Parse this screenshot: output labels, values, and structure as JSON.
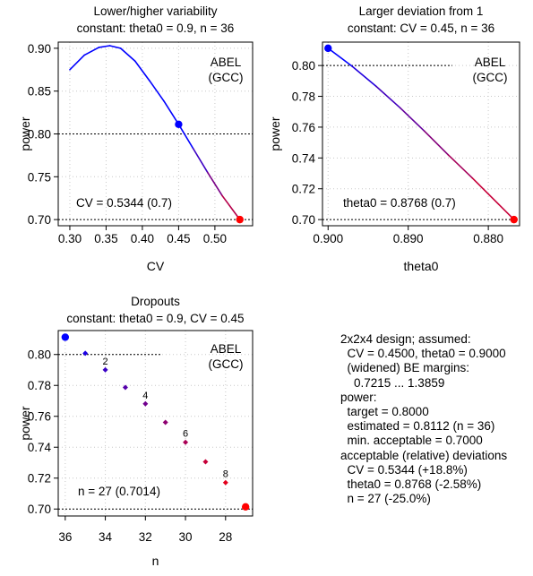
{
  "panels": [
    {
      "id": "cv",
      "title_lines": [
        "Lower/higher variability",
        "constant: theta0 = 0.9, n = 36"
      ],
      "xlabel": "CV",
      "ylabel": "power",
      "x_reversed": false,
      "xlim": [
        0.284,
        0.552
      ],
      "ylim": [
        0.6928,
        0.9072
      ],
      "x_ticks": [
        "0.30",
        "0.35",
        "0.40",
        "0.45",
        "0.50"
      ],
      "y_ticks": [
        "0.70",
        "0.75",
        "0.80",
        "0.85",
        "0.90"
      ],
      "legend_lines": [
        "ABEL",
        "(GCC)"
      ],
      "annotation": "CV = 0.5344 (0.7)",
      "target_power": 0.8,
      "min_power": 0.7,
      "curve": {
        "x": [
          0.3,
          0.32,
          0.34,
          0.355,
          0.37,
          0.39,
          0.41,
          0.43,
          0.45,
          0.47,
          0.49,
          0.51,
          0.5344
        ],
        "y": [
          0.875,
          0.892,
          0.901,
          0.903,
          0.9,
          0.885,
          0.862,
          0.838,
          0.8112,
          0.783,
          0.755,
          0.728,
          0.7
        ]
      },
      "start_point": {
        "x": 0.45,
        "y": 0.8112
      },
      "end_point": {
        "x": 0.5344,
        "y": 0.7
      }
    },
    {
      "id": "theta0",
      "title_lines": [
        "Larger deviation from 1",
        "constant: CV = 0.45, n = 36"
      ],
      "xlabel": "theta0",
      "ylabel": "power",
      "x_reversed": true,
      "xlim": [
        0.9007,
        0.8761
      ],
      "ylim": [
        0.696,
        0.8152
      ],
      "x_ticks": [
        "0.900",
        "0.890",
        "0.880"
      ],
      "y_ticks": [
        "0.70",
        "0.72",
        "0.74",
        "0.76",
        "0.78",
        "0.80"
      ],
      "legend_lines": [
        "ABEL",
        "(GCC)"
      ],
      "annotation": "theta0 = 0.8768 (0.7)",
      "target_power": 0.8,
      "min_power": 0.7,
      "curve": {
        "x": [
          0.9,
          0.897,
          0.894,
          0.891,
          0.888,
          0.885,
          0.882,
          0.8768
        ],
        "y": [
          0.8112,
          0.7995,
          0.7865,
          0.7725,
          0.7575,
          0.742,
          0.727,
          0.7
        ]
      },
      "start_point": {
        "x": 0.9,
        "y": 0.8112
      },
      "end_point": {
        "x": 0.8768,
        "y": 0.7
      }
    },
    {
      "id": "n",
      "title_lines": [
        "Dropouts",
        "constant: theta0 = 0.9, CV = 0.45"
      ],
      "xlabel": "n",
      "ylabel": "power",
      "x_reversed": true,
      "xlim": [
        36.35,
        26.65
      ],
      "ylim": [
        0.6955,
        0.8155
      ],
      "x_ticks": [
        "36",
        "34",
        "32",
        "30",
        "28"
      ],
      "y_ticks": [
        "0.70",
        "0.72",
        "0.74",
        "0.76",
        "0.78",
        "0.80"
      ],
      "legend_lines": [
        "ABEL",
        "(GCC)"
      ],
      "annotation": "n = 27 (0.7014)",
      "target_power": 0.8,
      "min_power": 0.7,
      "points": {
        "x": [
          35,
          34,
          33,
          32,
          31,
          30,
          29,
          28
        ],
        "y": [
          0.8008,
          0.7901,
          0.7787,
          0.7681,
          0.7561,
          0.7432,
          0.7306,
          0.7171
        ]
      },
      "point_labels": [
        {
          "x": 34,
          "y": 0.7901,
          "text": "2"
        },
        {
          "x": 32,
          "y": 0.7681,
          "text": "4"
        },
        {
          "x": 30,
          "y": 0.7432,
          "text": "6"
        },
        {
          "x": 28,
          "y": 0.7171,
          "text": "8"
        }
      ],
      "start_point": {
        "x": 36,
        "y": 0.8112
      },
      "end_point": {
        "x": 27,
        "y": 0.7014
      }
    }
  ],
  "summary_lines": [
    "2x2x4 design; assumed:",
    "  CV = 0.4500, theta0 = 0.9000",
    "  (widened) BE margins:",
    "    0.7215 ... 1.3859",
    "power:",
    "  target = 0.8000",
    "  estimated = 0.8112 (n = 36)",
    "  min. acceptable = 0.7000",
    "acceptable (relative) deviations",
    "  CV = 0.5344 (+18.8%)",
    "  theta0 = 0.8768 (-2.58%)",
    "  n = 27 (-25.0%)"
  ],
  "colors": {
    "start": "#0000ff",
    "end": "#ff0000",
    "grid": "#c8c8c8",
    "frame": "#000000"
  },
  "chart_data": [
    {
      "type": "line",
      "title": "Lower/higher variability constant: theta0 = 0.9, n = 36",
      "xlabel": "CV",
      "ylabel": "power",
      "xlim": [
        0.284,
        0.552
      ],
      "ylim": [
        0.6928,
        0.9072
      ],
      "grid": true,
      "x": [
        0.3,
        0.32,
        0.34,
        0.355,
        0.37,
        0.39,
        0.41,
        0.43,
        0.45,
        0.47,
        0.49,
        0.51,
        0.5344
      ],
      "y": [
        0.875,
        0.892,
        0.901,
        0.903,
        0.9,
        0.885,
        0.862,
        0.838,
        0.8112,
        0.783,
        0.755,
        0.728,
        0.7
      ],
      "reference_lines": [
        0.8,
        0.7
      ]
    },
    {
      "type": "line",
      "title": "Larger deviation from 1 constant: CV = 0.45, n = 36",
      "xlabel": "theta0",
      "ylabel": "power",
      "xlim": [
        0.9007,
        0.8761
      ],
      "ylim": [
        0.696,
        0.8152
      ],
      "grid": true,
      "x": [
        0.9,
        0.897,
        0.894,
        0.891,
        0.888,
        0.885,
        0.882,
        0.8768
      ],
      "y": [
        0.8112,
        0.7995,
        0.7865,
        0.7725,
        0.7575,
        0.742,
        0.727,
        0.7
      ],
      "reference_lines": [
        0.8,
        0.7
      ]
    },
    {
      "type": "scatter",
      "title": "Dropouts constant: theta0 = 0.9, CV = 0.45",
      "xlabel": "n",
      "ylabel": "power",
      "xlim": [
        36.35,
        26.65
      ],
      "ylim": [
        0.6955,
        0.8155
      ],
      "grid": true,
      "x": [
        36,
        35,
        34,
        33,
        32,
        31,
        30,
        29,
        28,
        27
      ],
      "y": [
        0.8112,
        0.8008,
        0.7901,
        0.7787,
        0.7681,
        0.7561,
        0.7432,
        0.7306,
        0.7171,
        0.7014
      ],
      "reference_lines": [
        0.8,
        0.7
      ]
    }
  ]
}
